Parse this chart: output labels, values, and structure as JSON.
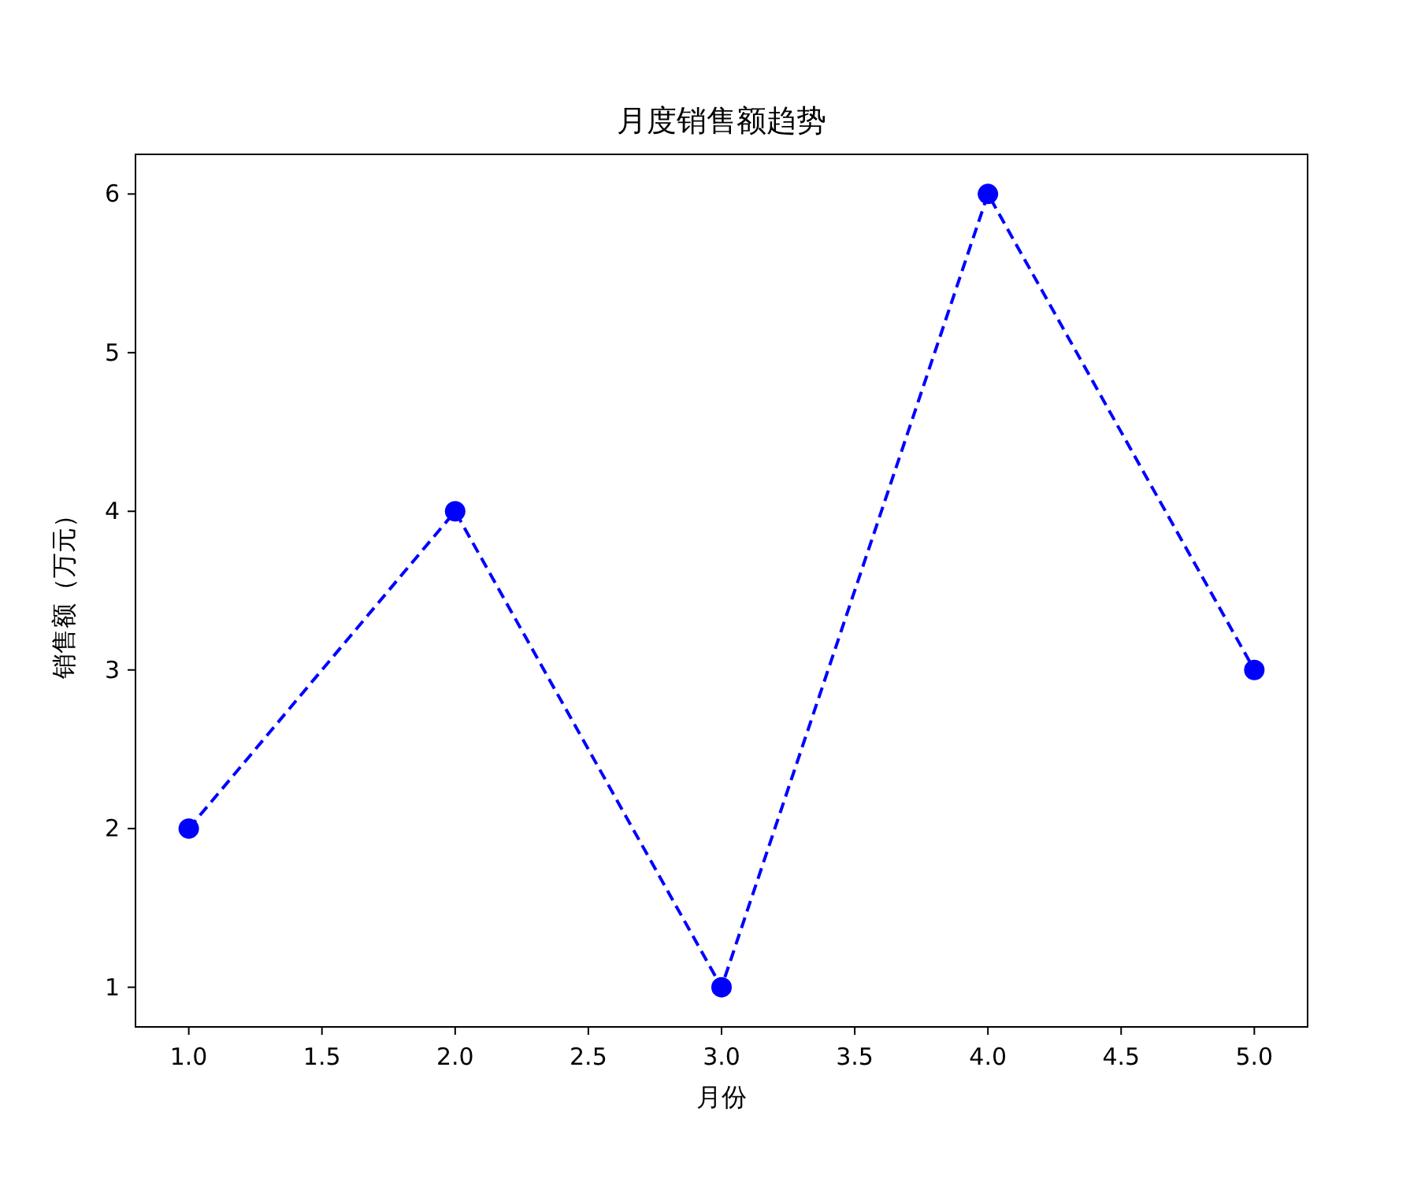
{
  "chart_data": {
    "type": "line",
    "title": "月度销售额趋势",
    "xlabel": "月份",
    "ylabel": "销售额（万元）",
    "x": [
      1,
      2,
      3,
      4,
      5
    ],
    "series": [
      {
        "color": "#0000ff",
        "values": [
          2,
          4,
          1,
          6,
          3
        ]
      }
    ],
    "xlim": [
      0.8,
      5.2
    ],
    "ylim": [
      0.75,
      6.25
    ],
    "xticks": [
      {
        "value": 1,
        "label": "1.0"
      },
      {
        "value": 1.5,
        "label": "1.5"
      },
      {
        "value": 2,
        "label": "2.0"
      },
      {
        "value": 2.5,
        "label": "2.5"
      },
      {
        "value": 3,
        "label": "3.0"
      },
      {
        "value": 3.5,
        "label": "3.5"
      },
      {
        "value": 4,
        "label": "4.0"
      },
      {
        "value": 4.5,
        "label": "4.5"
      },
      {
        "value": 5,
        "label": "5.0"
      }
    ],
    "yticks": [
      1,
      2,
      3,
      4,
      5,
      6
    ],
    "marker": "circle",
    "line_style": "dashed"
  }
}
